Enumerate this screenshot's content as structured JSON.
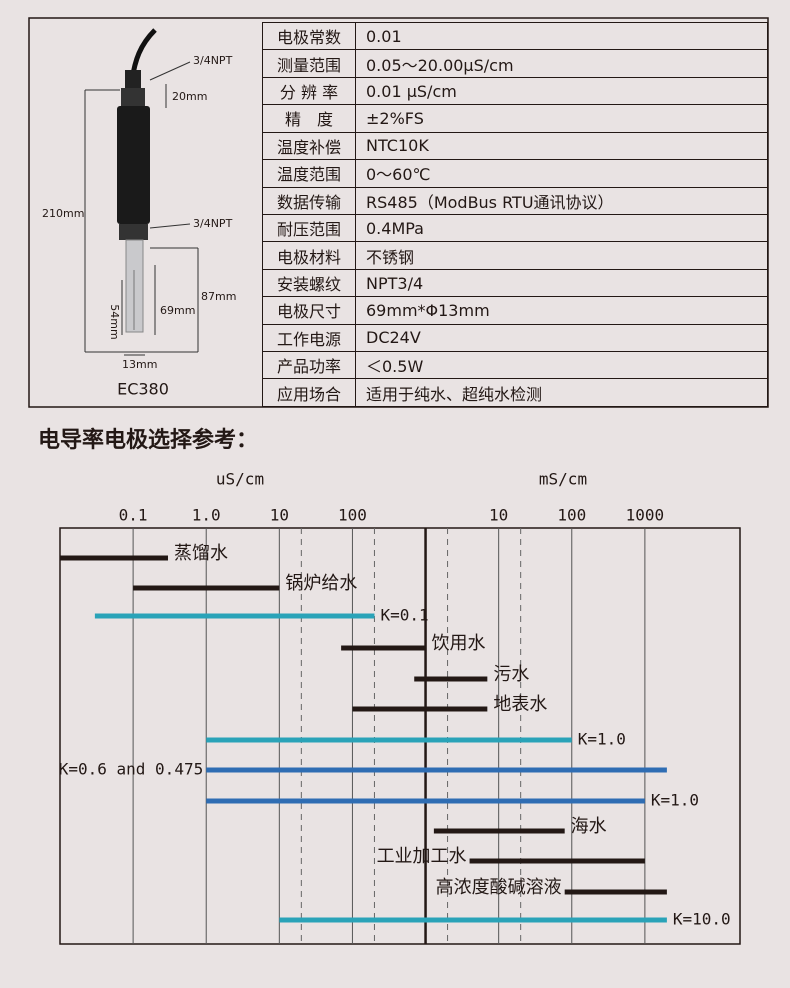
{
  "diagram": {
    "labels": [
      "3/4NPT",
      "20mm",
      "210mm",
      "3/4NPT",
      "87mm",
      "54mm",
      "69mm",
      "13mm"
    ],
    "model": "EC380"
  },
  "table": {
    "rows": [
      [
        "电极常数",
        "0.01"
      ],
      [
        "测量范围",
        "0.05～20.00μS/cm"
      ],
      [
        "分 辨 率",
        "0.01 μS/cm"
      ],
      [
        "精　度",
        "±2%FS"
      ],
      [
        "温度补偿",
        "NTC10K"
      ],
      [
        "温度范围",
        "0～60℃"
      ],
      [
        "数据传输",
        "RS485（ModBus RTU通讯协议）"
      ],
      [
        "耐压范围",
        "0.4MPa"
      ],
      [
        "电极材料",
        "不锈钢"
      ],
      [
        "安装螺纹",
        "NPT3/4"
      ],
      [
        "电极尺寸",
        "69mm*Φ13mm"
      ],
      [
        "工作电源",
        "DC24V"
      ],
      [
        "产品功率",
        "＜0.5W"
      ],
      [
        "应用场合",
        "适用于纯水、超纯水检测"
      ]
    ]
  },
  "section_title": "电导率电极选择参考：",
  "chart_data": {
    "type": "range-bar",
    "unit_labels": [
      "uS/cm",
      "mS/cm"
    ],
    "log_scale": true,
    "xlim": [
      0.01,
      20000000
    ],
    "xticks": [
      0.1,
      {
        "value": 1,
        "label": "1.0"
      },
      10,
      100,
      {
        "value": 10000,
        "label": "10"
      },
      {
        "value": 100000,
        "label": "100"
      },
      {
        "value": 1000000,
        "label": "1000"
      }
    ],
    "minor_gridlines": [
      20,
      200,
      2000,
      20000
    ],
    "divider": 1000,
    "bars": [
      {
        "name": "蒸馏水",
        "low": 0.01,
        "high": 0.3,
        "color": "#231815"
      },
      {
        "name": "锅炉给水",
        "low": 0.1,
        "high": 10,
        "color": "#231815"
      },
      {
        "name": "K=0.1",
        "low": 0.03,
        "high": 200,
        "color": "#2aa3b8"
      },
      {
        "name": "饮用水",
        "low": 70,
        "high": 1000,
        "color": "#231815"
      },
      {
        "name": "污水",
        "low": 700,
        "high": 7000,
        "color": "#231815"
      },
      {
        "name": "地表水",
        "low": 100,
        "high": 7000,
        "color": "#231815"
      },
      {
        "name": "K=1.0",
        "low": 1,
        "high": 100000,
        "color": "#2aa3b8"
      },
      {
        "name": "K=0.6 and 0.475",
        "low": 1,
        "high": 2000000,
        "color": "#2f6db3"
      },
      {
        "name": "K=1.0",
        "low": 1,
        "high": 1000000,
        "color": "#2f6db3"
      },
      {
        "name": "海水",
        "low": 1300,
        "high": 80000,
        "color": "#231815"
      },
      {
        "name": "工业加工水",
        "low": 4000,
        "high": 1000000,
        "color": "#231815"
      },
      {
        "name": "高浓度酸碱溶液",
        "low": 80000,
        "high": 2000000,
        "color": "#231815"
      },
      {
        "name": "K=10.0",
        "low": 10,
        "high": 2000000,
        "color": "#2aa3b8"
      }
    ]
  }
}
